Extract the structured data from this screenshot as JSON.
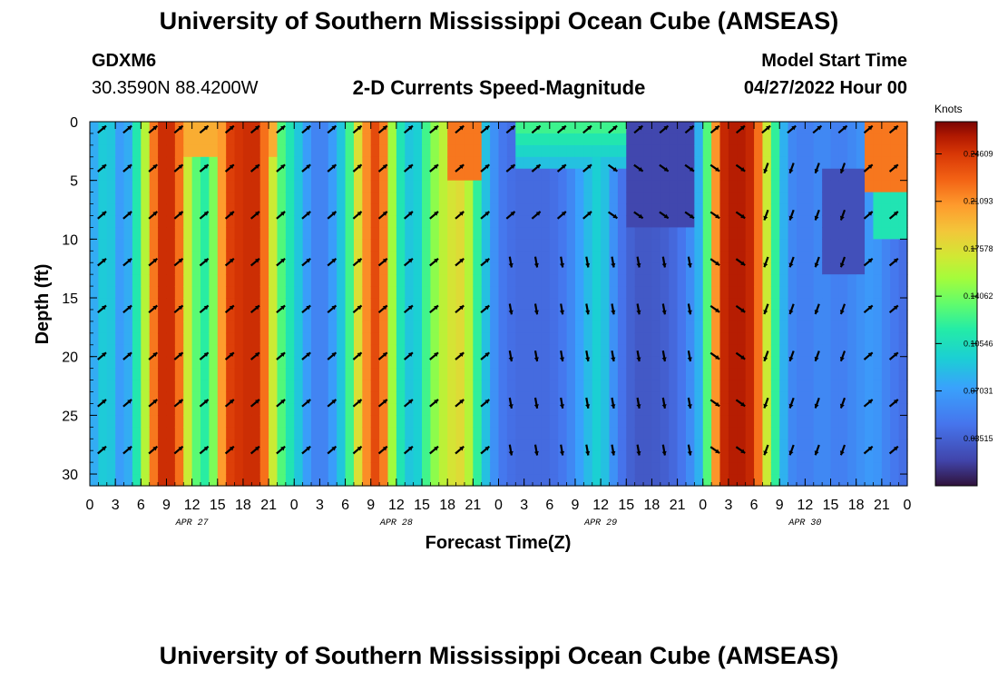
{
  "header": {
    "title": "University of Southern Mississippi Ocean Cube (AMSEAS)",
    "station": "GDXM6",
    "coords": "30.3590N  88.4200W",
    "product": "2-D Currents Speed-Magnitude",
    "start_label": "Model Start Time",
    "start_value": "04/27/2022 Hour 00"
  },
  "footer_title": "University of Southern Mississippi Ocean Cube (AMSEAS)",
  "chart_data": {
    "type": "heatmap",
    "xlabel": "Forecast Time(Z)",
    "ylabel": "Depth (ft)",
    "x_ticks": [
      "0",
      "3",
      "6",
      "9",
      "12",
      "15",
      "18",
      "21",
      "0",
      "3",
      "6",
      "9",
      "12",
      "15",
      "18",
      "21",
      "0",
      "3",
      "6",
      "9",
      "12",
      "15",
      "18",
      "21",
      "0",
      "3",
      "6",
      "9",
      "12",
      "15",
      "18",
      "21",
      "0"
    ],
    "x_hours": [
      0,
      3,
      6,
      9,
      12,
      15,
      18,
      21,
      24,
      27,
      30,
      33,
      36,
      39,
      42,
      45,
      48,
      51,
      54,
      57,
      60,
      63,
      66,
      69,
      72,
      75,
      78,
      81,
      84,
      87,
      90,
      93,
      96
    ],
    "date_labels": [
      {
        "text": "APR 27",
        "hour": 12
      },
      {
        "text": "APR 28",
        "hour": 36
      },
      {
        "text": "APR 29",
        "hour": 60
      },
      {
        "text": "APR 30",
        "hour": 84
      }
    ],
    "y_ticks": [
      "0",
      "5",
      "10",
      "15",
      "20",
      "25",
      "30"
    ],
    "ylim": [
      0,
      31
    ],
    "xlim": [
      0,
      96
    ],
    "colorbar": {
      "units": "Knots",
      "min": 0.0,
      "max": 0.27,
      "tick_values": [
        0.24609,
        0.21093,
        0.17578,
        0.14062,
        0.10546,
        0.07031,
        0.03515
      ],
      "tick_labels": [
        "0.24609",
        "0.21093",
        "0.17578",
        "0.14062",
        "0.10546",
        "0.07031",
        "0.03515"
      ]
    },
    "speed_by_hour": {
      "hours": [
        0,
        2,
        4,
        6,
        8,
        10,
        12,
        14,
        16,
        18,
        20,
        22,
        24,
        26,
        27,
        28,
        30,
        32,
        34,
        36,
        38,
        40,
        42,
        44,
        46,
        48,
        50,
        54,
        56,
        58,
        60,
        62,
        64,
        66,
        68,
        70,
        72,
        74,
        76,
        78,
        80,
        82,
        84,
        86,
        88,
        90,
        92,
        94,
        96
      ],
      "speed": [
        0.07,
        0.1,
        0.06,
        0.13,
        0.25,
        0.25,
        0.14,
        0.11,
        0.24,
        0.25,
        0.25,
        0.14,
        0.1,
        0.06,
        0.05,
        0.06,
        0.1,
        0.2,
        0.25,
        0.12,
        0.08,
        0.14,
        0.17,
        0.18,
        0.1,
        0.05,
        0.04,
        0.04,
        0.05,
        0.08,
        0.1,
        0.05,
        0.03,
        0.03,
        0.035,
        0.05,
        0.09,
        0.25,
        0.26,
        0.25,
        0.14,
        0.06,
        0.05,
        0.06,
        0.05,
        0.06,
        0.07,
        0.05,
        0.04
      ]
    },
    "vector_hours": [
      1,
      4,
      7,
      10,
      13,
      16,
      19,
      22,
      25,
      28,
      31,
      34,
      37,
      40,
      43,
      46,
      49,
      52,
      55,
      58,
      61,
      64,
      67,
      70,
      73,
      76,
      79,
      82,
      85,
      88,
      91,
      94
    ],
    "vector_depths": [
      0.5,
      3.8,
      7.8,
      11.8,
      15.8,
      19.8,
      23.8,
      27.8
    ]
  }
}
